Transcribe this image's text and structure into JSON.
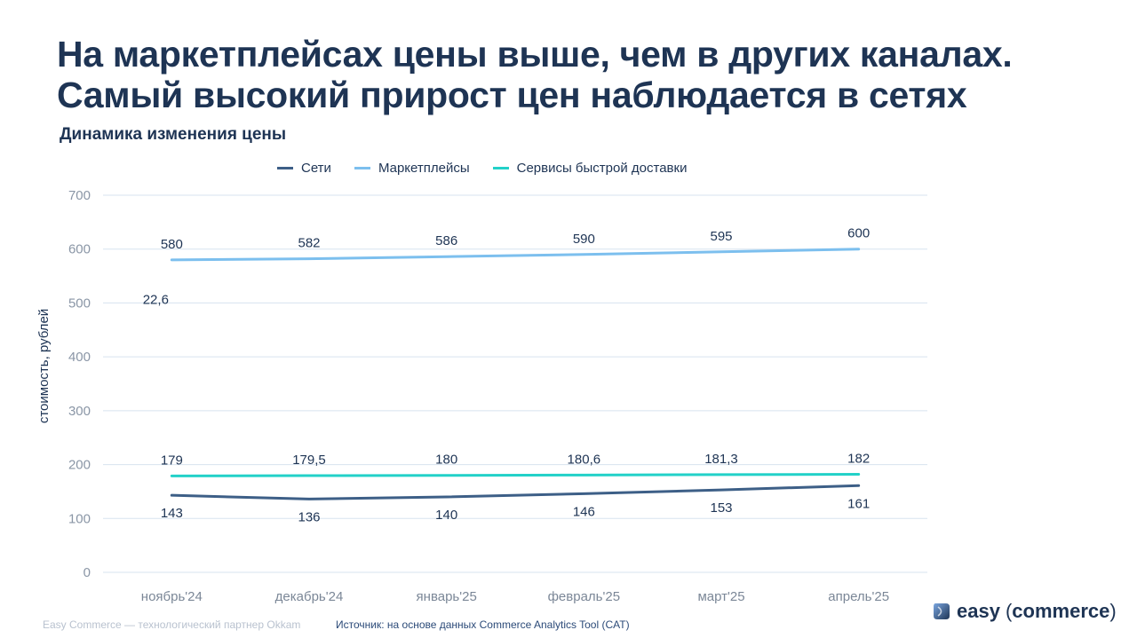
{
  "headline": {
    "line1": "На маркетплейсах цены выше, чем в других каналах.",
    "line2": "Самый высокий прирост цен наблюдается в сетях"
  },
  "chart_title": "Динамика изменения цены",
  "chart_data": {
    "type": "line",
    "title": "Динамика изменения цены",
    "xlabel": "",
    "ylabel": "стоимость, рублей",
    "ylim": [
      0,
      700
    ],
    "yticks": [
      "0",
      "100",
      "200",
      "300",
      "400",
      "500",
      "600",
      "700"
    ],
    "grid": true,
    "legend_position": "top",
    "categories": [
      "ноябрь'24",
      "декабрь'24",
      "январь'25",
      "февраль'25",
      "март'25",
      "апрель'25"
    ],
    "series": [
      {
        "name": "Сети",
        "color": "#3d5f87",
        "values": [
          143,
          136,
          140,
          146,
          153,
          161
        ],
        "labels": [
          "143",
          "136",
          "140",
          "146",
          "153",
          "161"
        ],
        "label_position": "below"
      },
      {
        "name": "Маркетплейсы",
        "color": "#7cbfee",
        "values": [
          580,
          582,
          586,
          590,
          595,
          600
        ],
        "labels": [
          "580",
          "582",
          "586",
          "590",
          "595",
          "600"
        ],
        "label_position": "above"
      },
      {
        "name": "Сервисы быстрой доставки",
        "color": "#22d1c8",
        "values": [
          179,
          179.5,
          180,
          180.6,
          181.3,
          182
        ],
        "labels": [
          "179",
          "179,5",
          "180",
          "180,6",
          "181,3",
          "182"
        ],
        "label_position": "above"
      }
    ],
    "annotations": [
      {
        "text": "22,6",
        "x": "ноябрь'24",
        "y": 520
      }
    ]
  },
  "footer": {
    "partner": "Easy Commerce — технологический партнер Okkam",
    "source": "Источник: на основе данных Commerce Analytics Tool (CAT)"
  },
  "logo": {
    "word1": "easy",
    "word2": "commerce",
    "open_paren": "(",
    "close_paren": ")"
  }
}
